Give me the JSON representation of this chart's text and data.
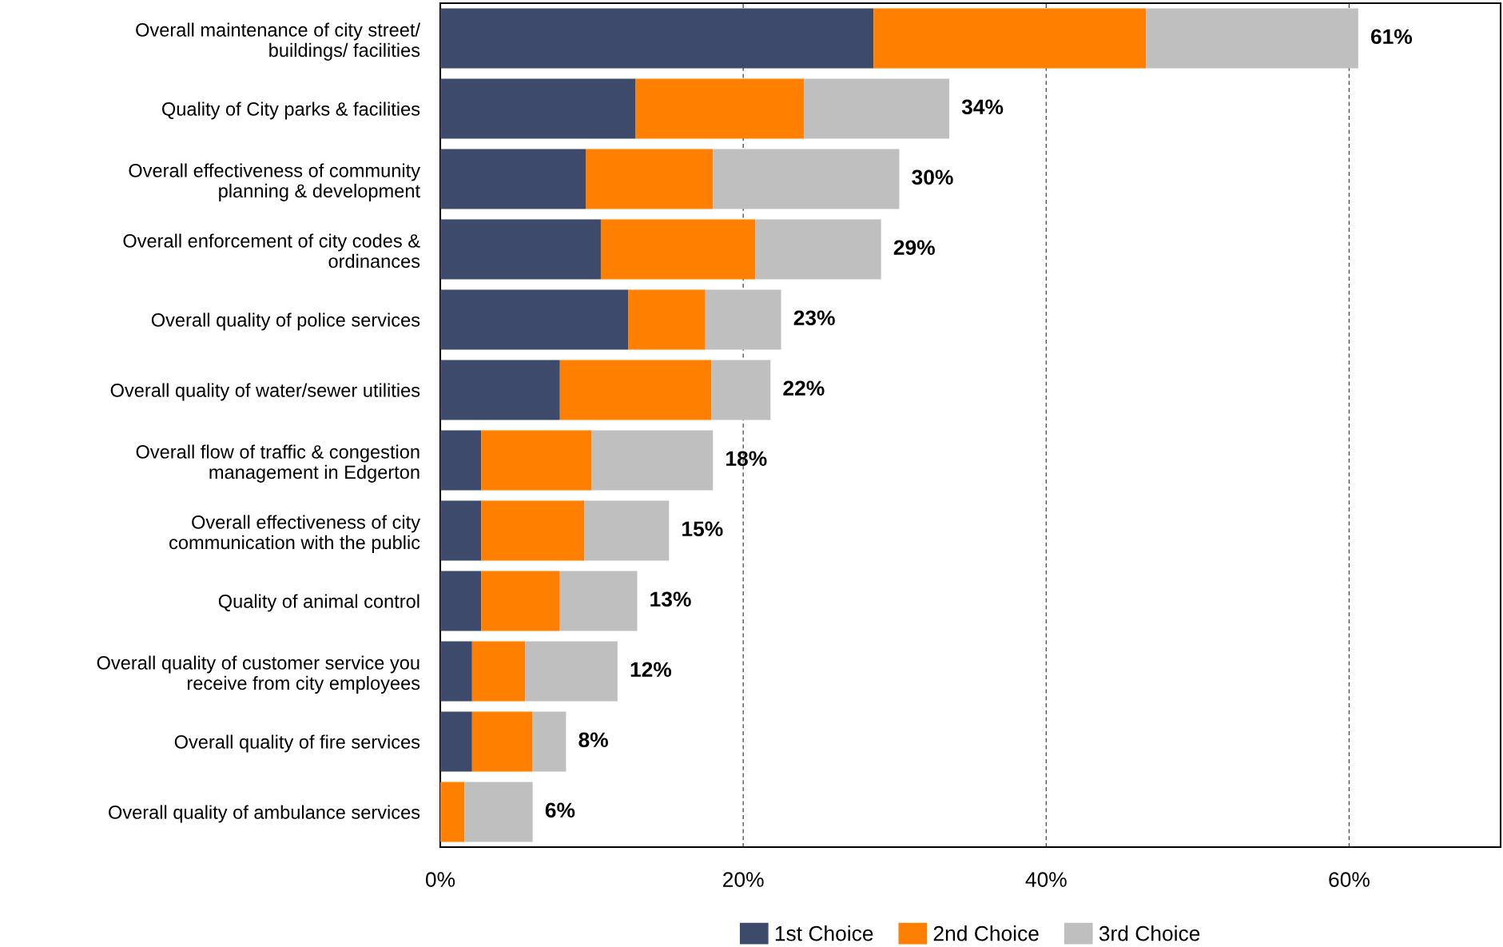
{
  "chart_data": {
    "type": "bar",
    "orientation": "horizontal",
    "stacked": true,
    "categories": [
      "Overall maintenance of city street/\nbuildings/ facilities",
      "Quality of City parks & facilities",
      "Overall effectiveness of community\nplanning & development",
      "Overall enforcement of city codes &\nordinances",
      "Overall quality of police services",
      "Overall quality of water/sewer utilities",
      "Overall flow of traffic & congestion\nmanagement in Edgerton",
      "Overall effectiveness of city\ncommunication with the public",
      "Quality of animal control",
      "Overall quality of customer service you\nreceive from city employees",
      "Overall quality of fire services",
      "Overall quality of ambulance services"
    ],
    "series": [
      {
        "name": "1st Choice",
        "color": "#3d4a6b",
        "values": [
          28.6,
          12.9,
          9.6,
          10.6,
          12.4,
          7.9,
          2.7,
          2.7,
          2.7,
          2.1,
          2.1,
          0
        ]
      },
      {
        "name": "2nd Choice",
        "color": "#ff7f00",
        "values": [
          18.0,
          11.1,
          8.4,
          10.2,
          5.1,
          10.0,
          7.3,
          6.8,
          5.2,
          3.5,
          4.0,
          1.6
        ]
      },
      {
        "name": "3rd Choice",
        "color": "#bfbfbf",
        "values": [
          14.0,
          9.6,
          12.3,
          8.3,
          5.0,
          3.9,
          8.0,
          5.6,
          5.1,
          6.1,
          2.2,
          4.5
        ]
      }
    ],
    "totals": [
      "61%",
      "34%",
      "30%",
      "29%",
      "23%",
      "22%",
      "18%",
      "15%",
      "13%",
      "12%",
      "8%",
      "6%"
    ],
    "xlim": [
      0,
      70
    ],
    "xticks": [
      {
        "value": 0,
        "label": "0%"
      },
      {
        "value": 20,
        "label": "20%"
      },
      {
        "value": 40,
        "label": "40%"
      },
      {
        "value": 60,
        "label": "60%"
      }
    ],
    "grid": "x",
    "legend": "bottom"
  }
}
